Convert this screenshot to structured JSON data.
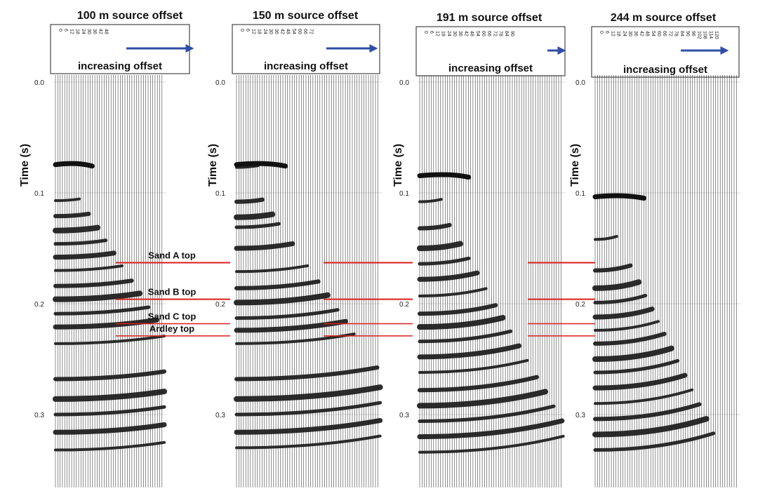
{
  "colors": {
    "horizon": "#d81e1e",
    "arrow": "#2f4ea8",
    "trace": "#111111",
    "grid": "#bdbdbd"
  },
  "chart_data": {
    "type": "seismic-gather",
    "ylabel": "Time (s)",
    "ylim": [
      0.0,
      0.355
    ],
    "y_ticks": [
      "0.0",
      "0.1",
      "0.2",
      "0.3"
    ],
    "y_tick_values": [
      0.0,
      0.1,
      0.2,
      0.3
    ],
    "header_label": "increasing offset",
    "panels": [
      {
        "title": "100 m source offset",
        "offsets": [
          "0",
          "6",
          "12",
          "18",
          "24",
          "30",
          "36",
          "42",
          "48"
        ],
        "first_arrival": 0.072,
        "reflections": [
          0.107,
          0.121,
          0.134,
          0.146,
          0.158,
          0.17,
          0.184,
          0.196,
          0.209,
          0.221,
          0.236,
          0.268,
          0.286,
          0.3,
          0.316,
          0.332
        ]
      },
      {
        "title": "150 m source offset",
        "offsets": [
          "0",
          "6",
          "12",
          "18",
          "24",
          "30",
          "36",
          "42",
          "48",
          "54",
          "60",
          "66",
          "72"
        ],
        "first_arrival": 0.072,
        "reflections": [
          0.077,
          0.108,
          0.122,
          0.131,
          0.15,
          0.171,
          0.186,
          0.199,
          0.213,
          0.224,
          0.236,
          0.268,
          0.286,
          0.3,
          0.316,
          0.33
        ]
      },
      {
        "title": "191 m source offset",
        "offsets": [
          "0",
          "6",
          "12",
          "18",
          "24",
          "30",
          "36",
          "42",
          "48",
          "54",
          "60",
          "66",
          "72",
          "78",
          "84",
          "90"
        ],
        "first_arrival": 0.082,
        "reflections": [
          0.108,
          0.132,
          0.15,
          0.164,
          0.178,
          0.193,
          0.209,
          0.221,
          0.234,
          0.248,
          0.262,
          0.278,
          0.292,
          0.306,
          0.32,
          0.334
        ]
      },
      {
        "title": "244 m source offset",
        "offsets": [
          "0",
          "6",
          "12",
          "18",
          "24",
          "30",
          "36",
          "42",
          "48",
          "54",
          "60",
          "66",
          "72",
          "78",
          "84",
          "90",
          "96",
          "102",
          "108",
          "114",
          "120"
        ],
        "first_arrival": 0.101,
        "reflections": [
          0.142,
          0.17,
          0.186,
          0.199,
          0.212,
          0.224,
          0.236,
          0.25,
          0.262,
          0.276,
          0.29,
          0.304,
          0.318,
          0.332
        ]
      }
    ],
    "horizons": [
      {
        "label": "Sand A top",
        "time": 0.163
      },
      {
        "label": "Sand B top",
        "time": 0.196
      },
      {
        "label": "Sand C top",
        "time": 0.218
      },
      {
        "label": "Ardley top",
        "time": 0.229
      }
    ]
  }
}
